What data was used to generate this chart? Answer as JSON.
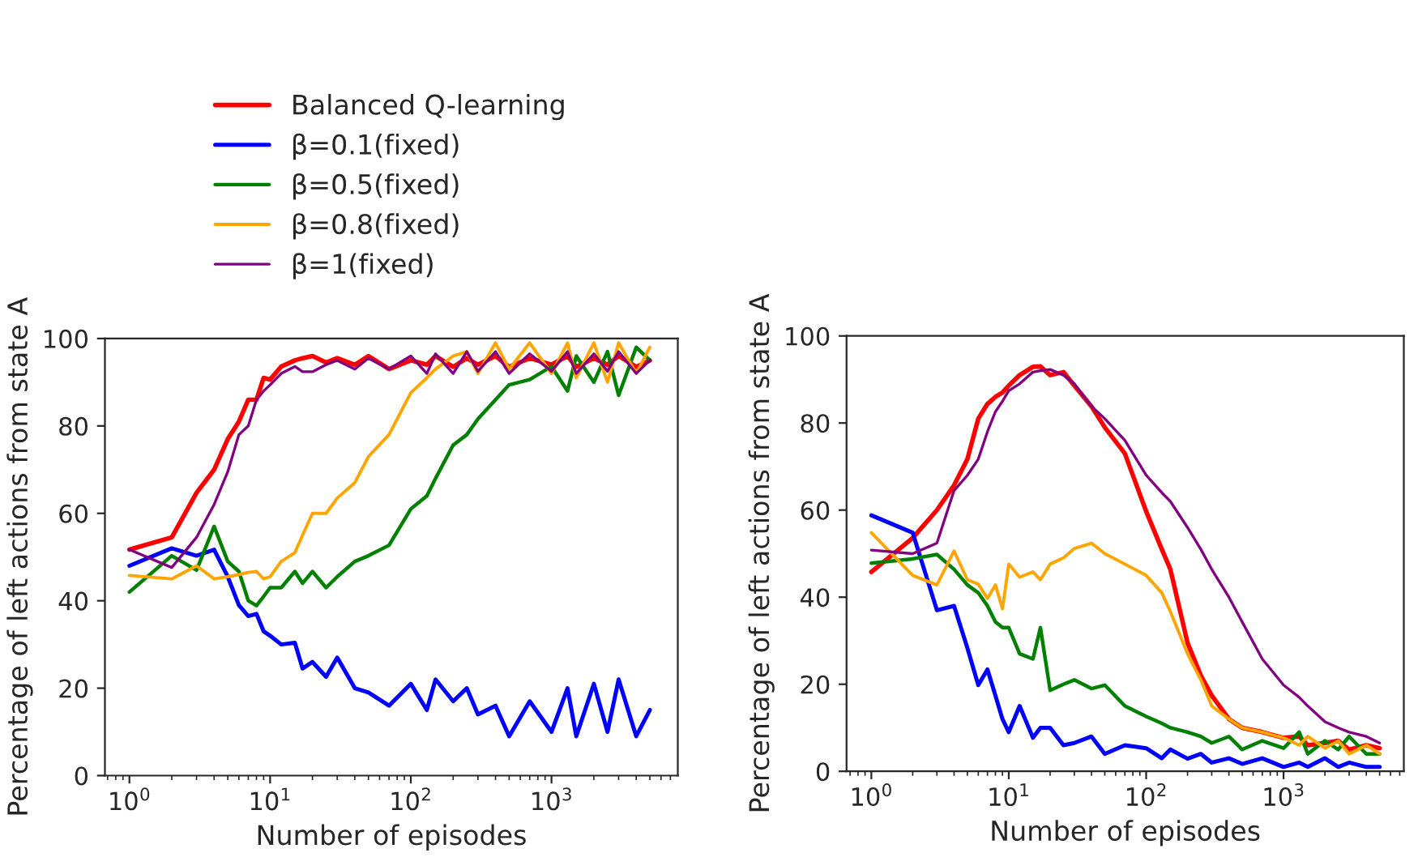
{
  "chart_data": [
    {
      "type": "line",
      "xlabel": "Number of episodes",
      "ylabel": "Percentage of left actions from state A",
      "log": "x",
      "legend": "top",
      "grid": false,
      "xlim": [
        0.67,
        7900
      ],
      "ylim": [
        0,
        100
      ],
      "xticks": [
        {
          "value": 1,
          "label": "10$^{0}$"
        },
        {
          "value": 10,
          "label": "10$^{1}$"
        },
        {
          "value": 100,
          "label": "10$^{2}$"
        },
        {
          "value": 1000,
          "label": "10$^{3}$"
        }
      ],
      "yticks": [
        0,
        20,
        40,
        60,
        80,
        100
      ],
      "x": [
        1,
        2,
        3,
        4,
        5,
        6,
        7,
        8,
        9,
        10,
        12,
        15,
        17,
        20,
        25,
        30,
        40,
        50,
        70,
        100,
        130,
        150,
        200,
        250,
        300,
        400,
        500,
        700,
        1000,
        1300,
        1500,
        2000,
        2500,
        3000,
        4000,
        5000
      ],
      "series": [
        {
          "name": "Balanced Q-learning",
          "color": "#ff0000",
          "values": [
            51.7,
            54.5,
            64.7,
            70,
            77,
            81,
            86,
            86,
            91,
            90.6,
            93.6,
            95,
            95.5,
            96,
            94.5,
            95.5,
            94,
            96,
            93,
            95,
            94,
            96,
            93.5,
            95.5,
            94,
            96,
            93.5,
            95.5,
            94,
            96,
            93.5,
            95.5,
            94,
            96,
            93.5,
            95
          ]
        },
        {
          "name": "β=0.1(fixed)",
          "color": "#0000ff",
          "values": [
            48,
            52,
            50.3,
            51.7,
            45.5,
            39,
            36.5,
            37,
            33,
            32,
            30,
            30.4,
            24.5,
            26,
            22.6,
            27,
            20,
            19,
            16,
            21,
            15,
            22,
            17,
            20,
            14,
            16,
            9,
            17,
            10,
            20,
            9,
            21,
            10,
            22,
            9,
            15
          ]
        },
        {
          "name": "β=0.5(fixed)",
          "color": "#008000",
          "values": [
            42,
            50.3,
            47,
            57,
            49,
            46.7,
            40,
            38.9,
            41,
            43,
            43,
            46.7,
            44,
            46.7,
            43,
            45.5,
            49,
            50.3,
            52.7,
            61,
            64,
            68,
            75.6,
            78,
            81.6,
            86,
            89.4,
            90.6,
            93.6,
            88,
            96,
            90,
            97,
            87,
            98,
            95
          ]
        },
        {
          "name": "β=0.8(fixed)",
          "color": "#ffa500",
          "values": [
            45.8,
            45,
            48,
            45,
            45.5,
            46,
            46.5,
            46.7,
            45,
            45.5,
            49,
            51,
            55,
            60,
            60,
            63.5,
            67,
            73,
            78,
            87.6,
            91,
            93,
            96,
            97,
            92,
            99,
            93,
            99,
            92,
            99,
            91,
            99,
            90,
            99,
            92,
            98
          ]
        },
        {
          "name": "β=1(fixed)",
          "color": "#800080",
          "values": [
            51.7,
            47.6,
            54.5,
            62,
            69.5,
            78,
            80,
            86,
            88,
            89.4,
            92,
            93.6,
            92.4,
            92.4,
            94,
            95,
            93,
            95.5,
            93,
            96,
            92,
            96.5,
            92,
            97,
            92.5,
            97,
            92,
            96.5,
            92.5,
            97,
            92,
            96.5,
            92.5,
            97,
            92,
            95
          ]
        }
      ]
    },
    {
      "type": "line",
      "xlabel": "Number of episodes",
      "ylabel": "Percentage of left actions from state A",
      "log": "x",
      "grid": false,
      "xlim": [
        0.66,
        7500
      ],
      "ylim": [
        0,
        100
      ],
      "xticks": [
        {
          "value": 1,
          "label": "10$^{0}$"
        },
        {
          "value": 10,
          "label": "10$^{1}$"
        },
        {
          "value": 100,
          "label": "10$^{2}$"
        },
        {
          "value": 1000,
          "label": "10$^{3}$"
        }
      ],
      "yticks": [
        0,
        20,
        40,
        60,
        80,
        100
      ],
      "x": [
        1,
        2,
        3,
        4,
        5,
        6,
        7,
        8,
        9,
        10,
        12,
        15,
        17,
        20,
        25,
        30,
        40,
        50,
        70,
        100,
        130,
        150,
        200,
        250,
        300,
        400,
        500,
        700,
        1000,
        1300,
        1500,
        2000,
        2500,
        3000,
        4000,
        5000
      ],
      "series": [
        {
          "color": "#ff0000",
          "values": [
            45.8,
            53.6,
            60,
            65.7,
            71.7,
            81,
            84.4,
            86,
            87,
            88.6,
            91,
            92.9,
            93,
            91,
            91.7,
            88.6,
            83.8,
            79,
            73,
            59.7,
            51,
            46.4,
            29.5,
            22,
            17.4,
            12,
            10,
            9,
            7.7,
            8,
            6,
            6.5,
            7,
            5,
            6,
            5.3
          ]
        },
        {
          "color": "#0000ff",
          "values": [
            58.8,
            54.8,
            37,
            38,
            28.3,
            19.8,
            23.4,
            17.4,
            12,
            9,
            15,
            7.7,
            10,
            10,
            6,
            6.5,
            8,
            4,
            6,
            5.3,
            3,
            5,
            2.9,
            4,
            2,
            3,
            1.7,
            3,
            1,
            2,
            1,
            3,
            1,
            2,
            1,
            1
          ]
        },
        {
          "color": "#008000",
          "values": [
            47.8,
            48.8,
            49.8,
            46.4,
            42.8,
            41,
            38,
            34.3,
            33,
            33,
            27,
            25.8,
            33,
            18.6,
            20,
            21,
            19,
            19.8,
            15,
            12.6,
            11,
            10,
            9,
            8,
            6.5,
            8,
            5,
            7,
            5.3,
            9,
            4,
            7,
            5,
            8,
            4,
            4
          ]
        },
        {
          "color": "#ffa500",
          "values": [
            54.8,
            45,
            42.8,
            50.6,
            44,
            43,
            39.7,
            42.8,
            37.3,
            47.6,
            44.6,
            45.8,
            44,
            47.6,
            49,
            51.2,
            52.4,
            50,
            47.6,
            45,
            41,
            36.7,
            27,
            21,
            15,
            12,
            10,
            9,
            7.7,
            6,
            8,
            5.3,
            7,
            4,
            6,
            4
          ]
        },
        {
          "color": "#800080",
          "values": [
            50.8,
            50,
            52.4,
            64.5,
            68,
            71.7,
            78,
            82.6,
            85,
            87.4,
            89,
            91.7,
            92,
            92.3,
            91,
            89,
            83.8,
            81,
            76,
            68,
            64,
            62,
            56,
            51,
            46.4,
            40,
            34.3,
            25.8,
            19.8,
            17,
            15,
            11.4,
            10,
            9,
            8,
            6.5
          ]
        }
      ]
    }
  ]
}
